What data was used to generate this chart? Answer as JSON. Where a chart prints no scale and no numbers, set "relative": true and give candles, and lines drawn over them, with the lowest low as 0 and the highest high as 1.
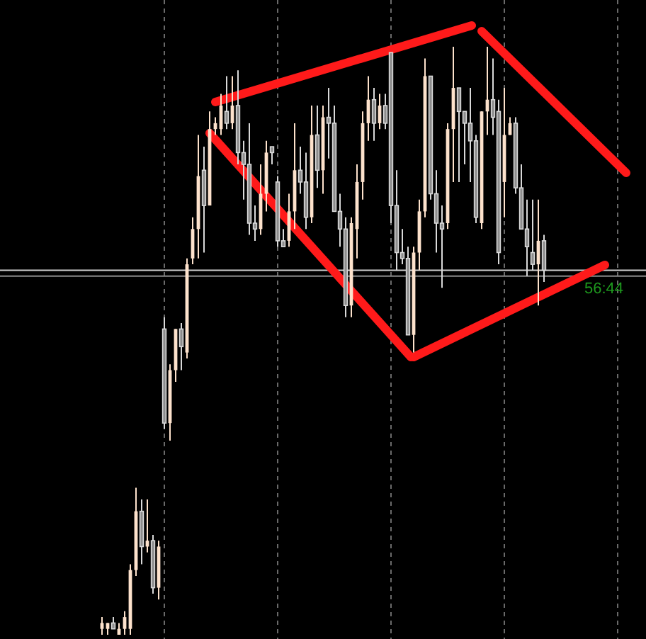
{
  "chart_data": {
    "type": "candlestick",
    "relative": true,
    "categories": [
      null,
      null,
      null,
      null,
      null,
      null,
      null,
      null,
      null,
      null,
      null,
      null,
      null,
      null,
      null,
      null,
      null,
      null,
      null,
      null,
      null,
      null,
      null,
      null,
      null,
      null,
      null,
      null,
      null,
      null,
      null,
      null,
      null,
      null,
      null,
      null,
      null,
      null,
      null,
      null,
      null,
      null,
      null,
      null,
      null,
      null,
      null,
      null,
      null,
      null,
      null,
      null,
      null,
      null,
      null,
      null,
      null,
      null,
      null,
      null,
      null,
      null,
      null,
      null,
      null,
      null,
      null,
      null,
      null,
      null,
      null,
      null,
      null,
      null,
      null,
      null,
      null,
      null,
      null
    ],
    "ohlc": [
      [
        0.01,
        0.03,
        0,
        0.02
      ],
      [
        0.01,
        0.02,
        0,
        0.02
      ],
      [
        0.02,
        0.03,
        0.01,
        0.01
      ],
      [
        0,
        0.02,
        0,
        0.01
      ],
      [
        0.01,
        0.04,
        0,
        0.03
      ],
      [
        0.01,
        0.12,
        0,
        0.11
      ],
      [
        0.11,
        0.25,
        0.1,
        0.21
      ],
      [
        0.21,
        0.23,
        0.12,
        0.15
      ],
      [
        0.15,
        0.23,
        0.14,
        0.16
      ],
      [
        0.16,
        0.17,
        0.07,
        0.08
      ],
      [
        0.08,
        0.16,
        0.06,
        0.15
      ],
      [
        0.52,
        0.54,
        0.35,
        0.36
      ],
      [
        0.36,
        0.46,
        0.33,
        0.45
      ],
      [
        0.45,
        0.52,
        0.43,
        0.52
      ],
      [
        0.52,
        0.53,
        0.45,
        0.49
      ],
      [
        0.48,
        0.64,
        0.47,
        0.63
      ],
      [
        0.64,
        0.71,
        0.63,
        0.69
      ],
      [
        0.69,
        0.85,
        0.64,
        0.78
      ],
      [
        0.79,
        0.83,
        0.65,
        0.73
      ],
      [
        0.73,
        0.89,
        0.73,
        0.86
      ],
      [
        0.86,
        0.88,
        0.85,
        0.87
      ],
      [
        0.86,
        0.92,
        0.85,
        0.9
      ],
      [
        0.89,
        0.95,
        0.86,
        0.87
      ],
      [
        0.87,
        0.95,
        0.86,
        0.9
      ],
      [
        0.9,
        0.96,
        0.8,
        0.82
      ],
      [
        0.82,
        0.84,
        0.74,
        0.8
      ],
      [
        0.8,
        0.87,
        0.68,
        0.7
      ],
      [
        0.7,
        0.73,
        0.67,
        0.69
      ],
      [
        0.69,
        0.8,
        0.68,
        0.75
      ],
      [
        0.75,
        0.84,
        0.72,
        0.82
      ],
      [
        0.83,
        0.83,
        0.8,
        0.82
      ],
      [
        0.77,
        0.78,
        0.66,
        0.67
      ],
      [
        0.67,
        0.69,
        0.66,
        0.66
      ],
      [
        0.67,
        0.75,
        0.66,
        0.72
      ],
      [
        0.72,
        0.87,
        0.69,
        0.79
      ],
      [
        0.79,
        0.83,
        0.75,
        0.77
      ],
      [
        0.77,
        0.82,
        0.69,
        0.71
      ],
      [
        0.71,
        0.9,
        0.7,
        0.85
      ],
      [
        0.85,
        0.9,
        0.76,
        0.79
      ],
      [
        0.79,
        0.9,
        0.75,
        0.88
      ],
      [
        0.88,
        0.93,
        0.81,
        0.87
      ],
      [
        0.87,
        0.9,
        0.72,
        0.72
      ],
      [
        0.72,
        0.75,
        0.66,
        0.69
      ],
      [
        0.69,
        0.71,
        0.54,
        0.56
      ],
      [
        0.56,
        0.71,
        0.54,
        0.7
      ],
      [
        0.69,
        0.8,
        0.64,
        0.77
      ],
      [
        0.77,
        0.89,
        0.74,
        0.87
      ],
      [
        0.87,
        0.95,
        0.84,
        0.91
      ],
      [
        0.91,
        0.93,
        0.84,
        0.87
      ],
      [
        0.87,
        0.92,
        0.86,
        0.9
      ],
      [
        0.9,
        0.92,
        0.86,
        0.87
      ],
      [
        0.99,
        0.99,
        0.7,
        0.73
      ],
      [
        0.73,
        0.79,
        0.62,
        0.65
      ],
      [
        0.65,
        0.69,
        0.63,
        0.64
      ],
      [
        0.64,
        0.66,
        0.51,
        0.51
      ],
      [
        0.51,
        0.66,
        0.48,
        0.65
      ],
      [
        0.65,
        0.74,
        0.62,
        0.72
      ],
      [
        0.72,
        0.98,
        0.71,
        0.95
      ],
      [
        0.95,
        0.95,
        0.74,
        0.75
      ],
      [
        0.75,
        0.79,
        0.65,
        0.7
      ],
      [
        0.7,
        0.73,
        0.59,
        0.69
      ],
      [
        0.7,
        0.87,
        0.69,
        0.86
      ],
      [
        0.86,
        1,
        0.77,
        0.93
      ],
      [
        0.93,
        0.93,
        0.77,
        0.89
      ],
      [
        0.89,
        0.89,
        0.8,
        0.87
      ],
      [
        0.87,
        0.93,
        0.77,
        0.84
      ],
      [
        0.84,
        0.85,
        0.7,
        0.71
      ],
      [
        0.7,
        0.89,
        0.69,
        0.89
      ],
      [
        0.89,
        1,
        0.85,
        0.91
      ],
      [
        0.91,
        0.98,
        0.85,
        0.88
      ],
      [
        0.89,
        0.91,
        0.63,
        0.65
      ],
      [
        0.77,
        0.93,
        0.71,
        0.85
      ],
      [
        0.85,
        0.88,
        0.85,
        0.87
      ],
      [
        0.87,
        0.88,
        0.75,
        0.76
      ],
      [
        0.76,
        0.8,
        0.69,
        0.69
      ],
      [
        0.69,
        0.74,
        0.61,
        0.66
      ],
      [
        0.65,
        0.74,
        0.62,
        0.63
      ],
      [
        0.63,
        0.74,
        0.56,
        0.67
      ],
      [
        0.67,
        0.68,
        0.6,
        0.62
      ]
    ],
    "colors": [
      "#fde2cc",
      "#fde2cc",
      "#d9d9d9",
      "#fde2cc",
      "#fde2cc",
      "#fde2cc",
      "#fde2cc",
      "#d9d9d9",
      "#fde2cc",
      "#d9d9d9",
      "#fde2cc",
      "#d9d9d9",
      "#fde2cc",
      "#fde2cc",
      "#d9d9d9",
      "#fde2cc",
      "#fde2cc",
      "#fde2cc",
      "#d9d9d9",
      "#fde2cc",
      "#fde2cc",
      "#fde2cc",
      "#d9d9d9",
      "#fde2cc",
      "#d9d9d9",
      "#d9d9d9",
      "#d9d9d9",
      "#d9d9d9",
      "#fde2cc",
      "#fde2cc",
      "#d9d9d9",
      "#d9d9d9",
      "#d9d9d9",
      "#fde2cc",
      "#fde2cc",
      "#d9d9d9",
      "#d9d9d9",
      "#fde2cc",
      "#d9d9d9",
      "#fde2cc",
      "#d9d9d9",
      "#d9d9d9",
      "#d9d9d9",
      "#d9d9d9",
      "#fde2cc",
      "#fde2cc",
      "#fde2cc",
      "#fde2cc",
      "#d9d9d9",
      "#fde2cc",
      "#d9d9d9",
      "#d9d9d9",
      "#d9d9d9",
      "#d9d9d9",
      "#d9d9d9",
      "#fde2cc",
      "#fde2cc",
      "#fde2cc",
      "#d9d9d9",
      "#d9d9d9",
      "#d9d9d9",
      "#fde2cc",
      "#fde2cc",
      "#d9d9d9",
      "#d9d9d9",
      "#d9d9d9",
      "#d9d9d9",
      "#fde2cc",
      "#fde2cc",
      "#d9d9d9",
      "#d9d9d9",
      "#fde2cc",
      "#fde2cc",
      "#d9d9d9",
      "#d9d9d9",
      "#d9d9d9",
      "#d9d9d9",
      "#fde2cc",
      "#d9d9d9"
    ],
    "ref_lines": [
      {
        "axis": "y",
        "value": 0.62,
        "label": null,
        "color": "#d0d0d0"
      },
      {
        "axis": "y",
        "value": 0.61,
        "label": null,
        "color": "#8a8a8a"
      }
    ],
    "grid": "x",
    "annotations": [
      "56:44"
    ]
  }
}
